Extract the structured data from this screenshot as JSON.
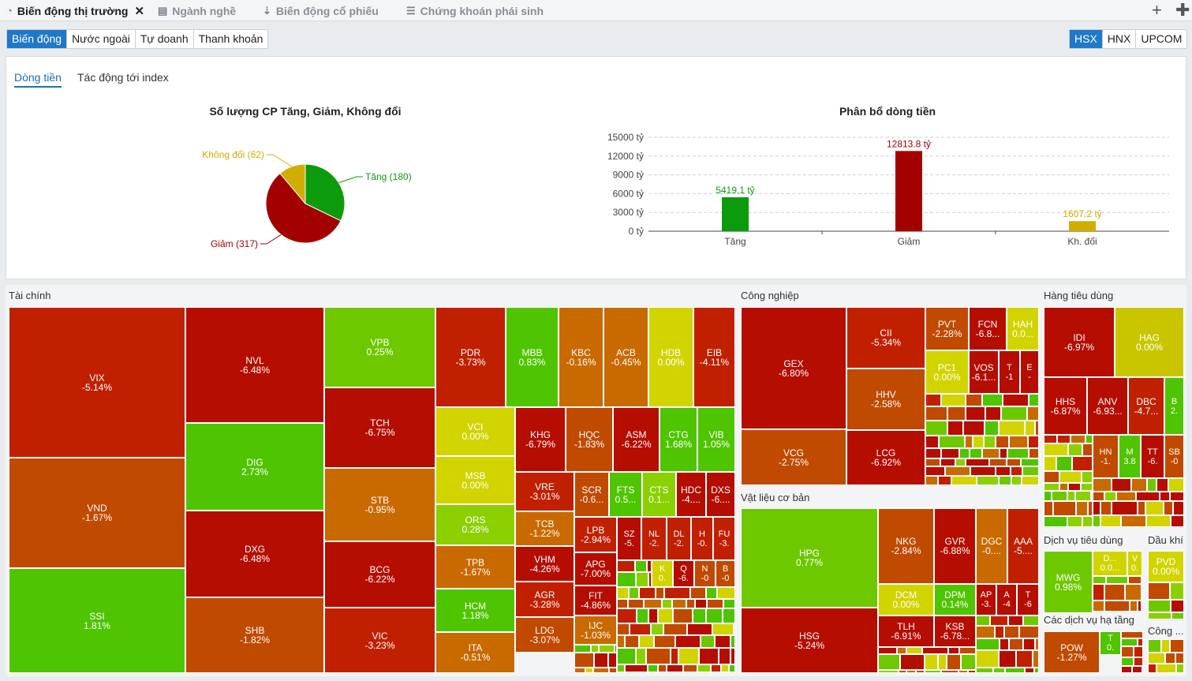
{
  "tabs": [
    {
      "label": "Biến động thị trường",
      "icon": "pie-chart-icon",
      "active": true
    },
    {
      "label": "Ngành nghề",
      "icon": "table-icon"
    },
    {
      "label": "Biến động cổ phiếu",
      "icon": "sort-icon"
    },
    {
      "label": "Chứng khoán phái sinh",
      "icon": "list-icon"
    }
  ],
  "filters": [
    "Biến động",
    "Nước ngoài",
    "Tự doanh",
    "Thanh khoản"
  ],
  "exchanges": [
    "HSX",
    "HNX",
    "UPCOM"
  ],
  "subtabs": [
    "Dòng tiền",
    "Tác động tới index"
  ],
  "colors": {
    "up": "#0c9b0c",
    "down": "#a30000",
    "flat": "#d1ad00",
    "accent": "#1f78c8"
  },
  "chart_data": [
    {
      "type": "pie",
      "title": "Số lượng CP Tăng, Giảm, Không đổi",
      "slices": [
        {
          "label": "Tăng (180)",
          "value": 180,
          "color": "#0c9b0c"
        },
        {
          "label": "Giảm (317)",
          "value": 317,
          "color": "#a30000"
        },
        {
          "label": "Không đổi (62)",
          "value": 62,
          "color": "#d1ad00"
        }
      ]
    },
    {
      "type": "bar",
      "title": "Phân bổ dòng tiền",
      "categories": [
        "Tăng",
        "Giảm",
        "Kh. đổi"
      ],
      "values": [
        5419.1,
        12813.8,
        1607.2
      ],
      "data_labels": [
        "5419.1 tỷ",
        "12813.8 tỷ",
        "1607.2 tỷ"
      ],
      "colors": [
        "#0c9b0c",
        "#a30000",
        "#d1ad00"
      ],
      "yticks": [
        "0 tỷ",
        "3000 tỷ",
        "6000 tỷ",
        "9000 tỷ",
        "12000 tỷ",
        "15000 tỷ"
      ],
      "ylim": [
        0,
        15000
      ],
      "grid": true
    }
  ],
  "sectors": [
    "Tài chính",
    "Công nghiệp",
    "Vật liệu cơ bản",
    "Hàng tiêu dùng",
    "Dịch vụ tiêu dùng",
    "Dầu khí",
    "Các dịch vụ hạ tầng",
    "Công ..."
  ],
  "heatmap": [
    {
      "t": "VIX",
      "v": "-5.14%"
    },
    {
      "t": "VND",
      "v": "-1.67%"
    },
    {
      "t": "SSI",
      "v": "1.81%"
    },
    {
      "t": "NVL",
      "v": "-6.48%"
    },
    {
      "t": "DIG",
      "v": "2.73%"
    },
    {
      "t": "DXG",
      "v": "-6.48%"
    },
    {
      "t": "SHB",
      "v": "-1.82%"
    },
    {
      "t": "VPB",
      "v": "0.25%"
    },
    {
      "t": "TCH",
      "v": "-6.75%"
    },
    {
      "t": "STB",
      "v": "-0.95%"
    },
    {
      "t": "BCG",
      "v": "-6.22%"
    },
    {
      "t": "VIC",
      "v": "-3.23%"
    },
    {
      "t": "PDR",
      "v": "-3.73%"
    },
    {
      "t": "MBB",
      "v": "0.83%"
    },
    {
      "t": "KBC",
      "v": "-0.16%"
    },
    {
      "t": "ACB",
      "v": "-0.45%"
    },
    {
      "t": "HDB",
      "v": "0.00%"
    },
    {
      "t": "EIB",
      "v": "-4.11%"
    },
    {
      "t": "VCI",
      "v": "0.00%"
    },
    {
      "t": "MSB",
      "v": "0.00%"
    },
    {
      "t": "ORS",
      "v": "0.28%"
    },
    {
      "t": "TPB",
      "v": "-1.67%"
    },
    {
      "t": "HCM",
      "v": "1.18%"
    },
    {
      "t": "ITA",
      "v": "-0.51%"
    },
    {
      "t": "KHG",
      "v": "-6.79%"
    },
    {
      "t": "HQC",
      "v": "-1.83%"
    },
    {
      "t": "ASM",
      "v": "-6.22%"
    },
    {
      "t": "CTG",
      "v": "1.68%"
    },
    {
      "t": "VIB",
      "v": "1.05%"
    },
    {
      "t": "VRE",
      "v": "-3.01%"
    },
    {
      "t": "TCB",
      "v": "-1.22%"
    },
    {
      "t": "VHM",
      "v": "-4.26%"
    },
    {
      "t": "AGR",
      "v": "-3.28%"
    },
    {
      "t": "LDG",
      "v": "-3.07%"
    },
    {
      "t": "SCR",
      "v": "-0.6..."
    },
    {
      "t": "FTS",
      "v": "0.5..."
    },
    {
      "t": "CTS",
      "v": "0.1..."
    },
    {
      "t": "HDC",
      "v": "-4...."
    },
    {
      "t": "DXS",
      "v": "-6...."
    },
    {
      "t": "LPB",
      "v": "-2.94%"
    },
    {
      "t": "SZ",
      "v": "-5."
    },
    {
      "t": "NL",
      "v": "-2."
    },
    {
      "t": "DL",
      "v": "-2."
    },
    {
      "t": "H",
      "v": "-0."
    },
    {
      "t": "FU",
      "v": "-3."
    },
    {
      "t": "APG",
      "v": "-7.00%"
    },
    {
      "t": "K",
      "v": "0."
    },
    {
      "t": "Q",
      "v": "-6."
    },
    {
      "t": "N",
      "v": "-0"
    },
    {
      "t": "B",
      "v": "-0"
    },
    {
      "t": "FIT",
      "v": "-4.86%"
    },
    {
      "t": "IJC",
      "v": "-1.03%"
    },
    {
      "t": "GEX",
      "v": "-6.80%"
    },
    {
      "t": "VCG",
      "v": "-2.75%"
    },
    {
      "t": "CII",
      "v": "-5.34%"
    },
    {
      "t": "HHV",
      "v": "-2.58%"
    },
    {
      "t": "LCG",
      "v": "-6.92%"
    },
    {
      "t": "PVT",
      "v": "-2.28%"
    },
    {
      "t": "FCN",
      "v": "-6.8..."
    },
    {
      "t": "HAH",
      "v": "0.0..."
    },
    {
      "t": "PC1",
      "v": "0.00%"
    },
    {
      "t": "VOS",
      "v": "-6.1..."
    },
    {
      "t": "T",
      "v": "-1"
    },
    {
      "t": "E",
      "v": "-"
    },
    {
      "t": "HPG",
      "v": "0.77%"
    },
    {
      "t": "HSG",
      "v": "-5.24%"
    },
    {
      "t": "NKG",
      "v": "-2.84%"
    },
    {
      "t": "GVR",
      "v": "-6.88%"
    },
    {
      "t": "DGC",
      "v": "-0...."
    },
    {
      "t": "AAA",
      "v": "-5...."
    },
    {
      "t": "DCM",
      "v": "0.00%"
    },
    {
      "t": "DPM",
      "v": "0.14%"
    },
    {
      "t": "AP",
      "v": "-3."
    },
    {
      "t": "A",
      "v": "-4"
    },
    {
      "t": "T",
      "v": "-6"
    },
    {
      "t": "TLH",
      "v": "-6.91%"
    },
    {
      "t": "KSB",
      "v": "-6.78..."
    },
    {
      "t": "IDI",
      "v": "-6.97%"
    },
    {
      "t": "HAG",
      "v": "0.00%"
    },
    {
      "t": "HHS",
      "v": "-6.87%"
    },
    {
      "t": "ANV",
      "v": "-6.93..."
    },
    {
      "t": "DBC",
      "v": "-4.7..."
    },
    {
      "t": "B",
      "v": "2."
    },
    {
      "t": "HN",
      "v": "-1."
    },
    {
      "t": "M",
      "v": "3.8"
    },
    {
      "t": "TT",
      "v": "-6."
    },
    {
      "t": "SB",
      "v": "-0"
    },
    {
      "t": "MWG",
      "v": "0.98%"
    },
    {
      "t": "D...",
      "v": "0.0..."
    },
    {
      "t": "V",
      "v": "0."
    },
    {
      "t": "PVD",
      "v": "0.00%"
    },
    {
      "t": "POW",
      "v": "-1.27%"
    },
    {
      "t": "T",
      "v": "0."
    }
  ]
}
